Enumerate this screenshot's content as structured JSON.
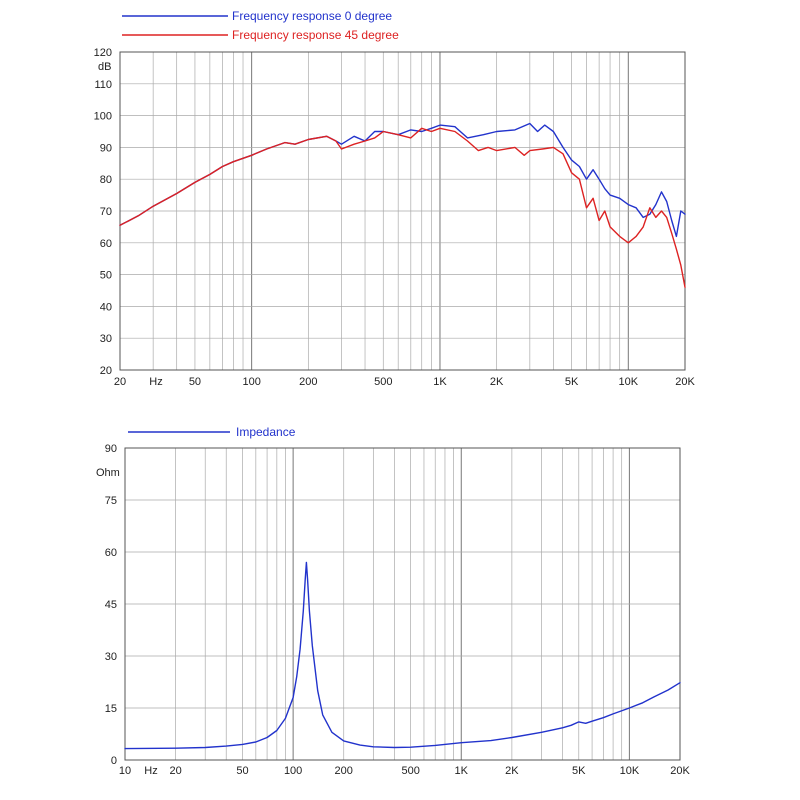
{
  "chart_data": [
    {
      "type": "line",
      "title": "",
      "xscale": "log",
      "xlim": [
        20,
        20000
      ],
      "ylim": [
        20,
        120
      ],
      "ylabel": "dB",
      "xlabel": "Hz",
      "x_ticks": [
        20,
        50,
        100,
        200,
        500,
        1000,
        2000,
        5000,
        10000,
        20000
      ],
      "x_tick_labels": [
        "20",
        "50",
        "100",
        "200",
        "500",
        "1K",
        "2K",
        "5K",
        "10K",
        "20K"
      ],
      "y_ticks": [
        20,
        30,
        40,
        50,
        60,
        70,
        80,
        90,
        100,
        110,
        120
      ],
      "grid": true,
      "legend_position": "top-left",
      "series": [
        {
          "name": "Frequency response 0 degree",
          "color": "#2233cc",
          "points": [
            [
              20,
              65.5
            ],
            [
              25,
              68.5
            ],
            [
              30,
              71.5
            ],
            [
              40,
              75.5
            ],
            [
              50,
              79
            ],
            [
              60,
              81.5
            ],
            [
              70,
              84
            ],
            [
              80,
              85.5
            ],
            [
              100,
              87.5
            ],
            [
              120,
              89.5
            ],
            [
              150,
              91.5
            ],
            [
              170,
              91
            ],
            [
              200,
              92.5
            ],
            [
              250,
              93.5
            ],
            [
              280,
              92
            ],
            [
              300,
              91
            ],
            [
              350,
              93.5
            ],
            [
              400,
              92
            ],
            [
              450,
              95
            ],
            [
              500,
              95
            ],
            [
              600,
              94
            ],
            [
              700,
              95.5
            ],
            [
              800,
              95
            ],
            [
              900,
              96
            ],
            [
              1000,
              97
            ],
            [
              1200,
              96.5
            ],
            [
              1400,
              93
            ],
            [
              1700,
              94
            ],
            [
              2000,
              95
            ],
            [
              2500,
              95.5
            ],
            [
              3000,
              97.5
            ],
            [
              3300,
              95
            ],
            [
              3600,
              97
            ],
            [
              4000,
              95
            ],
            [
              4500,
              90
            ],
            [
              5000,
              86
            ],
            [
              5500,
              84
            ],
            [
              6000,
              80
            ],
            [
              6500,
              83
            ],
            [
              7000,
              80
            ],
            [
              7500,
              77
            ],
            [
              8000,
              75
            ],
            [
              9000,
              74
            ],
            [
              10000,
              72
            ],
            [
              11000,
              71
            ],
            [
              12000,
              68
            ],
            [
              13000,
              69
            ],
            [
              14000,
              72
            ],
            [
              15000,
              76
            ],
            [
              16000,
              73
            ],
            [
              17000,
              67
            ],
            [
              18000,
              62
            ],
            [
              19000,
              70
            ],
            [
              20000,
              69
            ]
          ]
        },
        {
          "name": "Frequency response 45 degree",
          "color": "#dd2222",
          "points": [
            [
              20,
              65.5
            ],
            [
              25,
              68.5
            ],
            [
              30,
              71.5
            ],
            [
              40,
              75.5
            ],
            [
              50,
              79
            ],
            [
              60,
              81.5
            ],
            [
              70,
              84
            ],
            [
              80,
              85.5
            ],
            [
              100,
              87.5
            ],
            [
              120,
              89.5
            ],
            [
              150,
              91.5
            ],
            [
              170,
              91
            ],
            [
              200,
              92.5
            ],
            [
              250,
              93.5
            ],
            [
              280,
              92
            ],
            [
              300,
              89.5
            ],
            [
              350,
              91
            ],
            [
              400,
              92
            ],
            [
              450,
              93
            ],
            [
              500,
              95
            ],
            [
              600,
              94
            ],
            [
              700,
              93
            ],
            [
              800,
              96
            ],
            [
              900,
              95
            ],
            [
              1000,
              96
            ],
            [
              1200,
              95
            ],
            [
              1400,
              92
            ],
            [
              1600,
              89
            ],
            [
              1800,
              90
            ],
            [
              2000,
              89
            ],
            [
              2500,
              90
            ],
            [
              2800,
              87.5
            ],
            [
              3000,
              89
            ],
            [
              3500,
              89.5
            ],
            [
              4000,
              90
            ],
            [
              4500,
              88
            ],
            [
              5000,
              82
            ],
            [
              5500,
              80
            ],
            [
              6000,
              71
            ],
            [
              6500,
              74
            ],
            [
              7000,
              67
            ],
            [
              7500,
              70
            ],
            [
              8000,
              65
            ],
            [
              9000,
              62
            ],
            [
              10000,
              60
            ],
            [
              11000,
              62
            ],
            [
              12000,
              65
            ],
            [
              13000,
              71
            ],
            [
              14000,
              68
            ],
            [
              15000,
              70
            ],
            [
              16000,
              68
            ],
            [
              17000,
              63
            ],
            [
              18000,
              58
            ],
            [
              19000,
              53
            ],
            [
              20000,
              46
            ]
          ]
        }
      ]
    },
    {
      "type": "line",
      "title": "",
      "xscale": "log",
      "xlim": [
        10,
        20000
      ],
      "ylim": [
        0,
        90
      ],
      "ylabel": "Ohm",
      "xlabel": "Hz",
      "x_ticks": [
        10,
        20,
        50,
        100,
        200,
        500,
        1000,
        2000,
        5000,
        10000,
        20000
      ],
      "x_tick_labels": [
        "10",
        "20",
        "50",
        "100",
        "200",
        "500",
        "1K",
        "2K",
        "5K",
        "10K",
        "20K"
      ],
      "y_ticks": [
        0,
        15,
        30,
        45,
        60,
        75,
        90
      ],
      "grid": true,
      "legend_position": "top-left",
      "series": [
        {
          "name": "Impedance",
          "color": "#2233cc",
          "points": [
            [
              10,
              3.3
            ],
            [
              20,
              3.4
            ],
            [
              30,
              3.6
            ],
            [
              40,
              4
            ],
            [
              50,
              4.5
            ],
            [
              60,
              5.2
            ],
            [
              70,
              6.5
            ],
            [
              80,
              8.5
            ],
            [
              90,
              12
            ],
            [
              100,
              18
            ],
            [
              105,
              24
            ],
            [
              110,
              32
            ],
            [
              115,
              43
            ],
            [
              118,
              52
            ],
            [
              120,
              57
            ],
            [
              122,
              52
            ],
            [
              125,
              43
            ],
            [
              130,
              33
            ],
            [
              140,
              20
            ],
            [
              150,
              13
            ],
            [
              170,
              8
            ],
            [
              200,
              5.5
            ],
            [
              250,
              4.3
            ],
            [
              300,
              3.8
            ],
            [
              400,
              3.6
            ],
            [
              500,
              3.7
            ],
            [
              700,
              4.2
            ],
            [
              1000,
              5
            ],
            [
              1500,
              5.6
            ],
            [
              2000,
              6.5
            ],
            [
              3000,
              8
            ],
            [
              4000,
              9.3
            ],
            [
              4500,
              10
            ],
            [
              5000,
              11
            ],
            [
              5500,
              10.6
            ],
            [
              6000,
              11.2
            ],
            [
              7000,
              12.2
            ],
            [
              8000,
              13.3
            ],
            [
              10000,
              15
            ],
            [
              12000,
              16.5
            ],
            [
              14000,
              18.2
            ],
            [
              17000,
              20.2
            ],
            [
              20000,
              22.3
            ]
          ]
        }
      ]
    }
  ]
}
